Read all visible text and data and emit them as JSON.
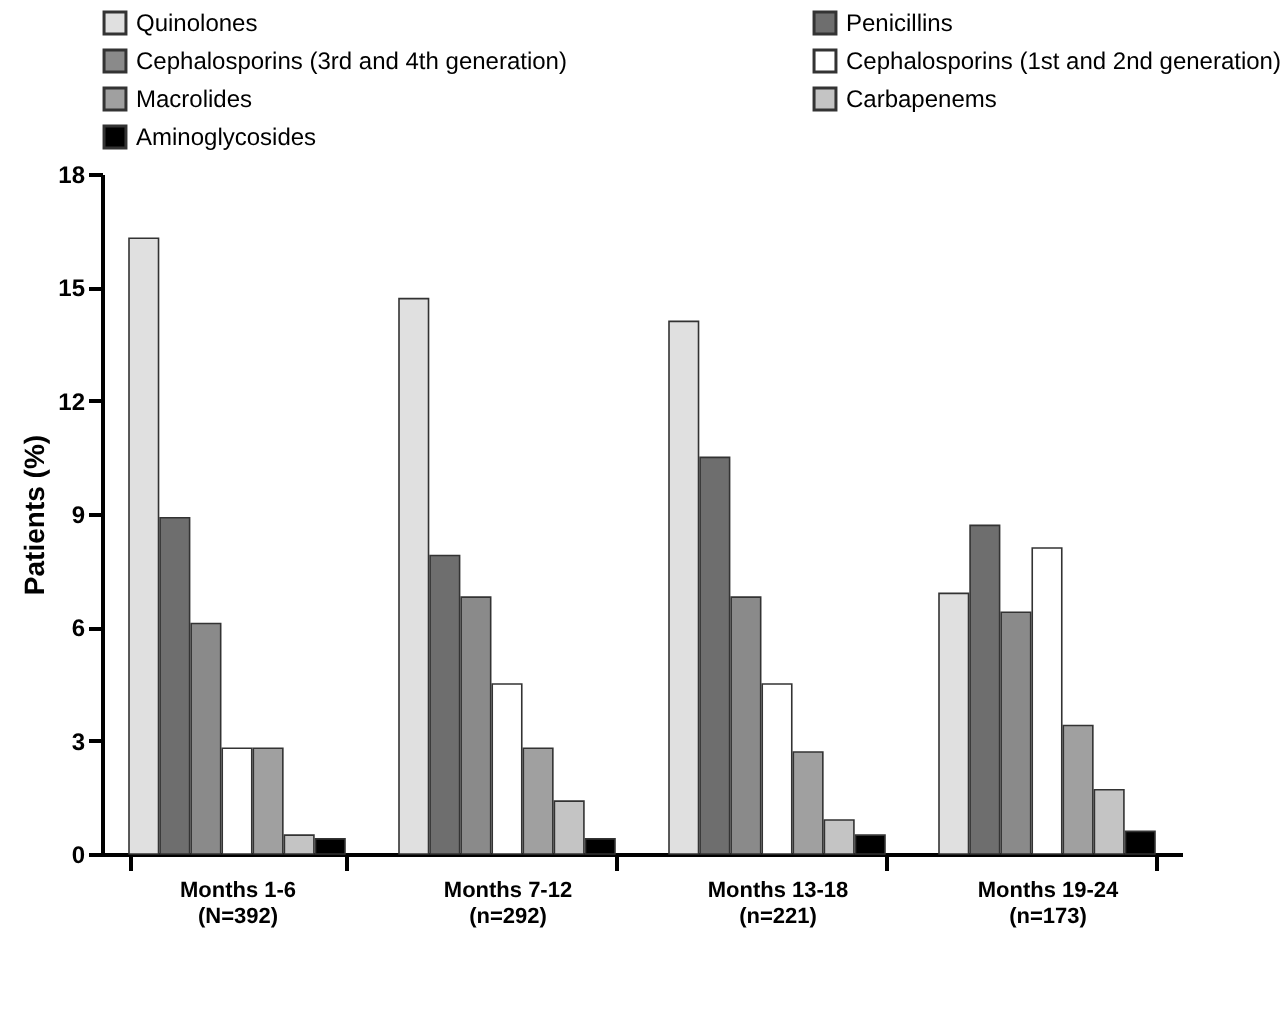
{
  "chart_data": {
    "type": "bar",
    "ylabel": "Patients (%)",
    "categories": [
      "Months 1-6 (N=392)",
      "Months 7-12 (n=292)",
      "Months 13-18 (n=221)",
      "Months 19-24 (n=173)"
    ],
    "series": [
      {
        "name": "Quinolones",
        "color": "#e0e0e0",
        "values": [
          16.3,
          14.7,
          14.1,
          6.9
        ]
      },
      {
        "name": "Penicillins",
        "color": "#6e6e6e",
        "values": [
          8.9,
          7.9,
          10.5,
          8.7
        ]
      },
      {
        "name": "Cephalosporins (3rd and 4th generation)",
        "color": "#8a8a8a",
        "values": [
          6.1,
          6.8,
          6.8,
          6.4
        ]
      },
      {
        "name": "Cephalosporins (1st and 2nd generation)",
        "color": "#ffffff",
        "values": [
          2.8,
          4.5,
          4.5,
          8.1
        ]
      },
      {
        "name": "Macrolides",
        "color": "#a0a0a0",
        "values": [
          2.8,
          2.8,
          2.7,
          3.4
        ]
      },
      {
        "name": "Carbapenems",
        "color": "#c4c4c4",
        "values": [
          0.5,
          1.4,
          0.9,
          1.7
        ]
      },
      {
        "name": "Aminoglycosides",
        "color": "#000000",
        "values": [
          0.4,
          0.4,
          0.5,
          0.6
        ]
      }
    ],
    "ylim": [
      0,
      18
    ],
    "yticks": [
      0,
      3,
      6,
      9,
      12,
      15,
      18
    ],
    "grid": false,
    "legend": "top"
  }
}
